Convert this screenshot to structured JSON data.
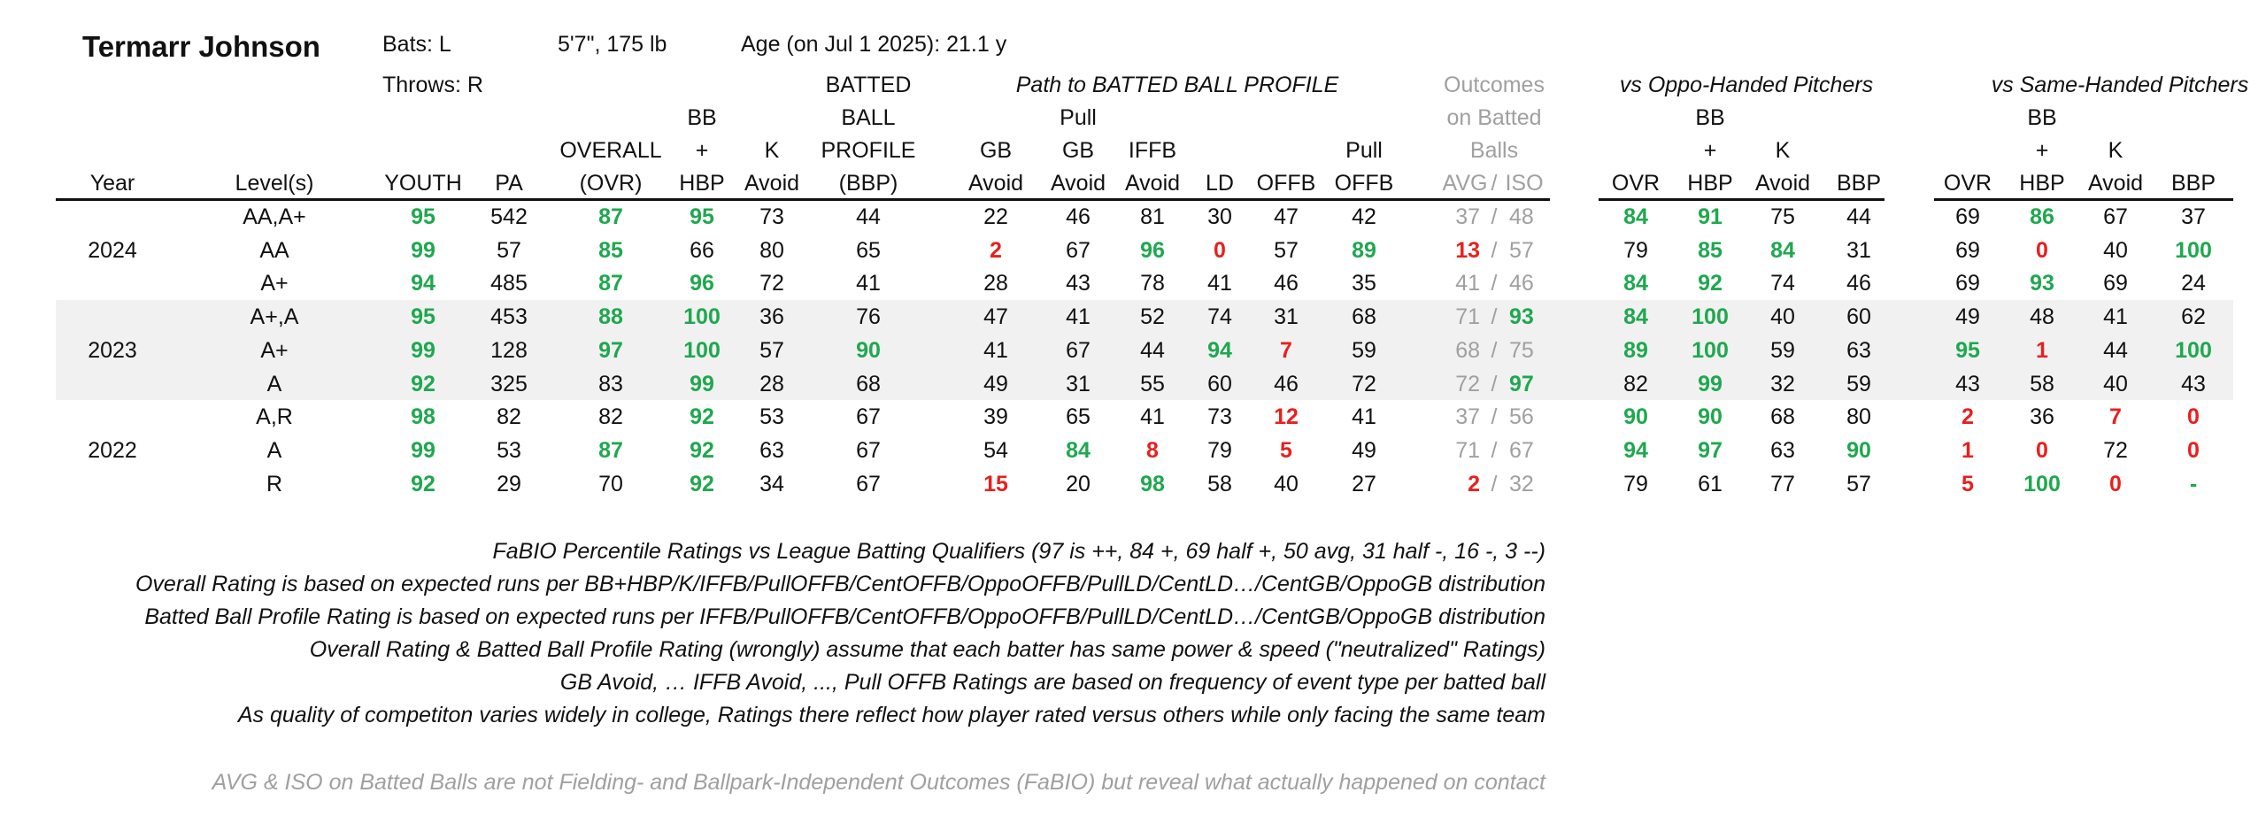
{
  "player": {
    "name": "Termarr Johnson",
    "bats": "Bats: L",
    "throws": "Throws: R",
    "size": "5'7\", 175 lb",
    "age": "Age (on Jul 1 2025): 21.1 y"
  },
  "group_headers": {
    "path": "Path to BATTED BALL PROFILE",
    "outcomes": [
      "Outcomes",
      "on Batted",
      "Balls"
    ],
    "vs_oppo": "vs Oppo-Handed Pitchers",
    "vs_same": "vs Same-Handed Pitchers"
  },
  "columns": {
    "year": "Year",
    "level": "Level(s)",
    "youth": "YOUTH",
    "pa": "PA",
    "overall": [
      "OVERALL",
      "(OVR)"
    ],
    "bbhbp": [
      "BB",
      "+",
      "HBP"
    ],
    "kavoid": [
      "K",
      "Avoid"
    ],
    "bbp": [
      "BATTED",
      "BALL",
      "PROFILE",
      "(BBP)"
    ],
    "gbavoid": [
      "GB",
      "Avoid"
    ],
    "pullgb": [
      "Pull",
      "GB",
      "Avoid"
    ],
    "iffb": [
      "IFFB",
      "Avoid"
    ],
    "ld": "LD",
    "offb": "OFFB",
    "pulloffb": [
      "Pull",
      "OFFB"
    ],
    "avg": "AVG",
    "slash": "/",
    "iso": "ISO",
    "ovr": "OVR",
    "bb": [
      "BB",
      "+",
      "HBP"
    ],
    "k": [
      "K",
      "Avoid"
    ],
    "bbp_short": "BBP"
  },
  "years": [
    {
      "year": "2024",
      "rows": [
        {
          "level": "AA,A+",
          "youth": "95",
          "pa": "542",
          "ovr": "87",
          "bb": "95",
          "k": "73",
          "bbp": "44",
          "gb": "22",
          "pgb": "46",
          "iffb": "81",
          "ld": "30",
          "offb": "47",
          "poffb": "42",
          "avg": "37",
          "iso": "48",
          "o_ovr": "84",
          "o_bb": "91",
          "o_k": "75",
          "o_bbp": "44",
          "s_ovr": "69",
          "s_bb": "86",
          "s_k": "67",
          "s_bbp": "37"
        },
        {
          "level": "AA",
          "youth": "99",
          "pa": "57",
          "ovr": "85",
          "bb": "66",
          "k": "80",
          "bbp": "65",
          "gb": "2",
          "pgb": "67",
          "iffb": "96",
          "ld": "0",
          "offb": "57",
          "poffb": "89",
          "avg": "13",
          "iso": "57",
          "o_ovr": "79",
          "o_bb": "85",
          "o_k": "84",
          "o_bbp": "31",
          "s_ovr": "69",
          "s_bb": "0",
          "s_k": "40",
          "s_bbp": "100"
        },
        {
          "level": "A+",
          "youth": "94",
          "pa": "485",
          "ovr": "87",
          "bb": "96",
          "k": "72",
          "bbp": "41",
          "gb": "28",
          "pgb": "43",
          "iffb": "78",
          "ld": "41",
          "offb": "46",
          "poffb": "35",
          "avg": "41",
          "iso": "46",
          "o_ovr": "84",
          "o_bb": "92",
          "o_k": "74",
          "o_bbp": "46",
          "s_ovr": "69",
          "s_bb": "93",
          "s_k": "69",
          "s_bbp": "24"
        }
      ]
    },
    {
      "year": "2023",
      "rows": [
        {
          "level": "A+,A",
          "youth": "95",
          "pa": "453",
          "ovr": "88",
          "bb": "100",
          "k": "36",
          "bbp": "76",
          "gb": "47",
          "pgb": "41",
          "iffb": "52",
          "ld": "74",
          "offb": "31",
          "poffb": "68",
          "avg": "71",
          "iso": "93",
          "o_ovr": "84",
          "o_bb": "100",
          "o_k": "40",
          "o_bbp": "60",
          "s_ovr": "49",
          "s_bb": "48",
          "s_k": "41",
          "s_bbp": "62"
        },
        {
          "level": "A+",
          "youth": "99",
          "pa": "128",
          "ovr": "97",
          "bb": "100",
          "k": "57",
          "bbp": "90",
          "gb": "41",
          "pgb": "67",
          "iffb": "44",
          "ld": "94",
          "offb": "7",
          "poffb": "59",
          "avg": "68",
          "iso": "75",
          "o_ovr": "89",
          "o_bb": "100",
          "o_k": "59",
          "o_bbp": "63",
          "s_ovr": "95",
          "s_bb": "1",
          "s_k": "44",
          "s_bbp": "100"
        },
        {
          "level": "A",
          "youth": "92",
          "pa": "325",
          "ovr": "83",
          "bb": "99",
          "k": "28",
          "bbp": "68",
          "gb": "49",
          "pgb": "31",
          "iffb": "55",
          "ld": "60",
          "offb": "46",
          "poffb": "72",
          "avg": "72",
          "iso": "97",
          "o_ovr": "82",
          "o_bb": "99",
          "o_k": "32",
          "o_bbp": "59",
          "s_ovr": "43",
          "s_bb": "58",
          "s_k": "40",
          "s_bbp": "43"
        }
      ]
    },
    {
      "year": "2022",
      "rows": [
        {
          "level": "A,R",
          "youth": "98",
          "pa": "82",
          "ovr": "82",
          "bb": "92",
          "k": "53",
          "bbp": "67",
          "gb": "39",
          "pgb": "65",
          "iffb": "41",
          "ld": "73",
          "offb": "12",
          "poffb": "41",
          "avg": "37",
          "iso": "56",
          "o_ovr": "90",
          "o_bb": "90",
          "o_k": "68",
          "o_bbp": "80",
          "s_ovr": "2",
          "s_bb": "36",
          "s_k": "7",
          "s_bbp": "0"
        },
        {
          "level": "A",
          "youth": "99",
          "pa": "53",
          "ovr": "87",
          "bb": "92",
          "k": "63",
          "bbp": "67",
          "gb": "54",
          "pgb": "84",
          "iffb": "8",
          "ld": "79",
          "offb": "5",
          "poffb": "49",
          "avg": "71",
          "iso": "67",
          "o_ovr": "94",
          "o_bb": "97",
          "o_k": "63",
          "o_bbp": "90",
          "s_ovr": "1",
          "s_bb": "0",
          "s_k": "72",
          "s_bbp": "0"
        },
        {
          "level": "R",
          "youth": "92",
          "pa": "29",
          "ovr": "70",
          "bb": "92",
          "k": "34",
          "bbp": "67",
          "gb": "15",
          "pgb": "20",
          "iffb": "98",
          "ld": "58",
          "offb": "40",
          "poffb": "27",
          "avg": "2",
          "iso": "32",
          "o_ovr": "79",
          "o_bb": "61",
          "o_k": "77",
          "o_bbp": "57",
          "s_ovr": "5",
          "s_bb": "100",
          "s_k": "0",
          "s_bbp": "-"
        }
      ]
    }
  ],
  "notes": [
    "FaBIO Percentile Ratings vs League Batting Qualifiers (97 is ++, 84 +, 69 half +, 50 avg, 31 half -, 16 -, 3 --)",
    "Overall Rating is based on expected runs per BB+HBP/K/IFFB/PullOFFB/CentOFFB/OppoOFFB/PullLD/CentLD…/CentGB/OppoGB distribution",
    "Batted Ball Profile Rating is based on expected runs per IFFB/PullOFFB/CentOFFB/OppoOFFB/PullLD/CentLD…/CentGB/OppoGB distribution",
    "Overall Rating & Batted Ball Profile Rating (wrongly) assume that each batter has same power & speed (\"neutralized\" Ratings)",
    "GB Avoid, … IFFB Avoid, ..., Pull OFFB Ratings are based on frequency of event type per batted ball",
    "As quality of competiton varies widely in college, Ratings there reflect how player rated versus others while only facing the same team"
  ],
  "disclaimer": "AVG & ISO on Batted Balls are not Fielding- and Ballpark-Independent Outcomes (FaBIO) but reveal what actually happened on contact",
  "colors": {
    "high": "#1fa84f",
    "low": "#e8201d",
    "muted": "#a0a0a0",
    "band": "#f1f1f1"
  }
}
